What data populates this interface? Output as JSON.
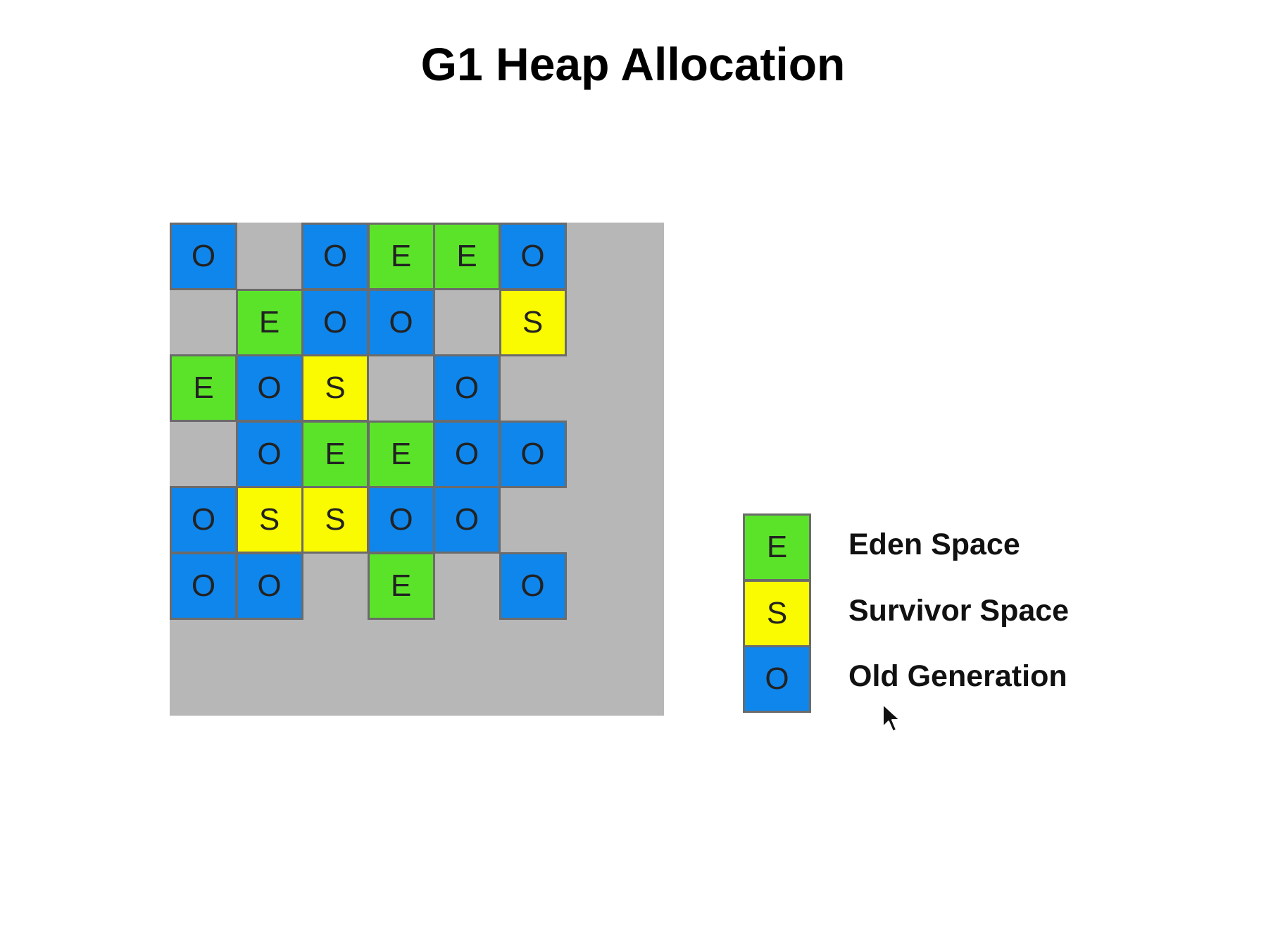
{
  "title": "G1 Heap Allocation",
  "colors": {
    "background": "#ffffff",
    "heap_background": "#b7b7b7",
    "region_border": "#6b6b6b",
    "E": "#5be32a",
    "S": "#fafa00",
    "O": "#0f86ec"
  },
  "heap": {
    "rows": [
      [
        "O",
        "",
        "O",
        "E",
        "E",
        "O"
      ],
      [
        "",
        "E",
        "O",
        "O",
        "",
        "S"
      ],
      [
        "E",
        "O",
        "S",
        "",
        "O",
        ""
      ],
      [
        "",
        "O",
        "E",
        "E",
        "O",
        "O"
      ],
      [
        "O",
        "S",
        "S",
        "O",
        "O",
        ""
      ],
      [
        "O",
        "O",
        "",
        "E",
        "",
        "O"
      ]
    ]
  },
  "legend": [
    {
      "letter": "E",
      "label": "Eden Space"
    },
    {
      "letter": "S",
      "label": "Survivor Space"
    },
    {
      "letter": "O",
      "label": "Old Generation"
    }
  ]
}
